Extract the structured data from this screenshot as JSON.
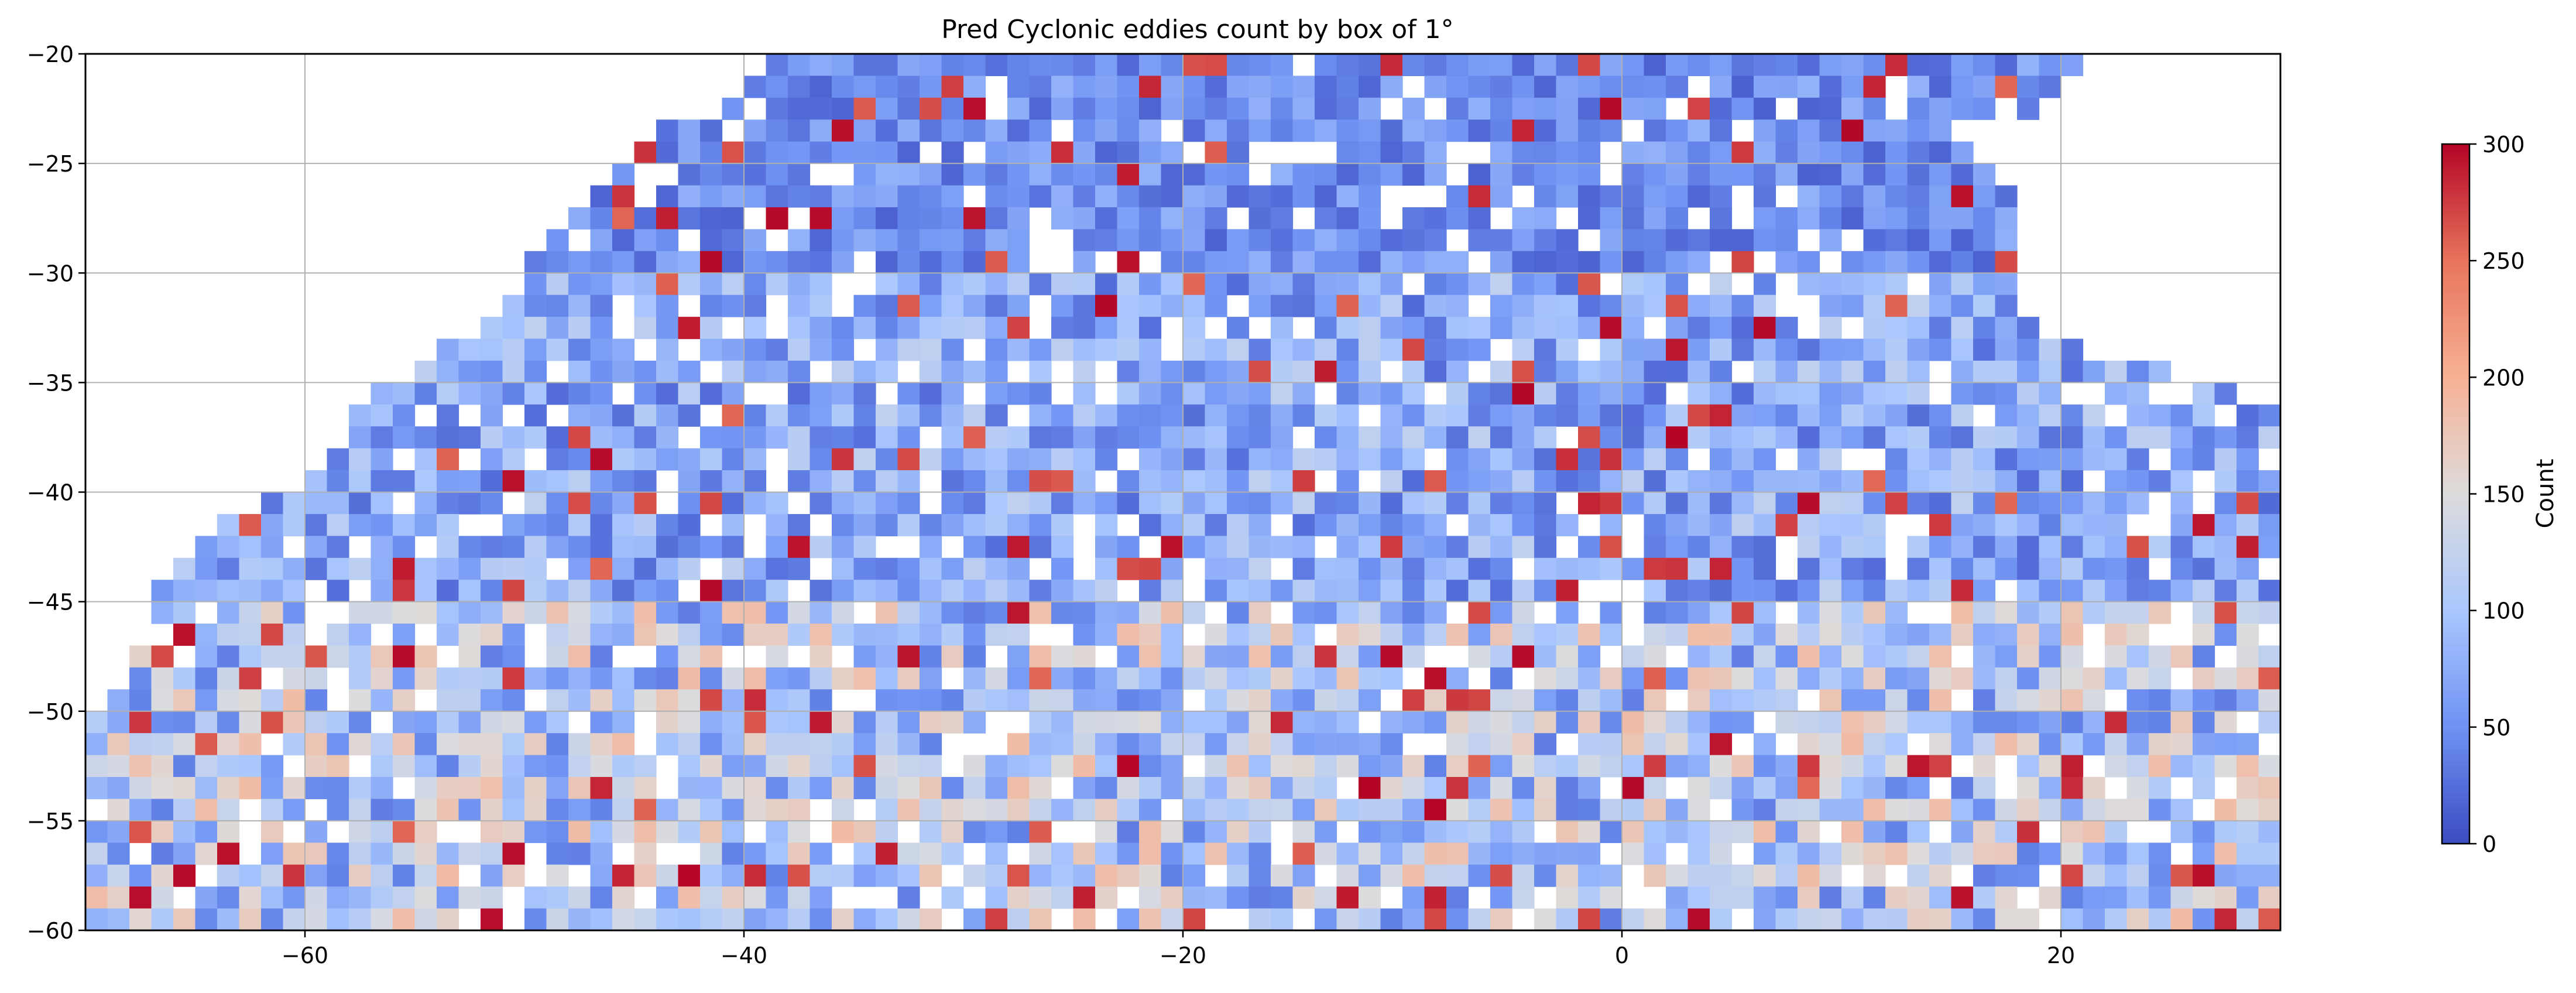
{
  "chart_data": {
    "type": "heatmap",
    "title": "Pred Cyclonic eddies count by box of 1°",
    "xlabel": "",
    "ylabel": "",
    "xlim": [
      -70,
      30
    ],
    "ylim": [
      -60,
      -20
    ],
    "cell_size_deg": 1,
    "grid": true,
    "x_ticks": [
      -60,
      -40,
      -20,
      0,
      20
    ],
    "x_tick_labels": [
      "−60",
      "−40",
      "−20",
      "0",
      "20"
    ],
    "y_ticks": [
      -20,
      -25,
      -30,
      -35,
      -40,
      -45,
      -50,
      -55,
      -60
    ],
    "y_tick_labels": [
      "−20",
      "−25",
      "−30",
      "−35",
      "−40",
      "−45",
      "−50",
      "−55",
      "−60"
    ],
    "colormap": "coolwarm",
    "colormap_stops": [
      "#3b4cc0",
      "#6f92f3",
      "#aac7fd",
      "#dddcdc",
      "#f7b194",
      "#e7745b",
      "#b40426"
    ],
    "colorbar": {
      "label": "Count",
      "range": [
        0,
        300
      ],
      "ticks": [
        0,
        50,
        100,
        150,
        200,
        250,
        300
      ],
      "tick_labels": [
        "0",
        "50",
        "100",
        "150",
        "200",
        "250",
        "300"
      ]
    },
    "lat_coverage": [
      {
        "lat": -21,
        "lon_min": -39,
        "lon_max": 20
      },
      {
        "lat": -24,
        "lon_min": -45,
        "lon_max": 15
      },
      {
        "lat": -27,
        "lon_min": -48,
        "lon_max": 17
      },
      {
        "lat": -30,
        "lon_min": -50,
        "lon_max": 17
      },
      {
        "lat": -33,
        "lon_min": -53,
        "lon_max": 18
      },
      {
        "lat": -36,
        "lon_min": -58,
        "lon_max": 29
      },
      {
        "lat": -39,
        "lon_min": -59,
        "lon_max": 29
      },
      {
        "lat": -42,
        "lon_min": -65,
        "lon_max": 29
      },
      {
        "lat": -45,
        "lon_min": -67,
        "lon_max": 29
      },
      {
        "lat": -48,
        "lon_min": -68,
        "lon_max": 29
      },
      {
        "lat": -51,
        "lon_min": -70,
        "lon_max": 29
      },
      {
        "lat": -54,
        "lon_min": -70,
        "lon_max": 29
      },
      {
        "lat": -57,
        "lon_min": -70,
        "lon_max": 29
      },
      {
        "lat": -60,
        "lon_min": -70,
        "lon_max": 29
      }
    ],
    "value_pattern_by_lat": [
      {
        "lat_max": -20,
        "lat_min": -30,
        "typical_count": 60,
        "peak_count": 300
      },
      {
        "lat_max": -30,
        "lat_min": -45,
        "typical_count": 90,
        "peak_count": 300
      },
      {
        "lat_max": -45,
        "lat_min": -60,
        "typical_count": 140,
        "peak_count": 300
      }
    ]
  }
}
